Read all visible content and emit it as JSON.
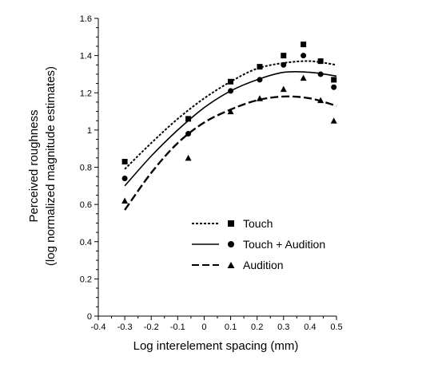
{
  "chart_data": {
    "type": "scatter",
    "title": "",
    "xlabel": "Log interelement spacing (mm)",
    "ylabel_line1": "Perceived roughness",
    "ylabel_line2": "(log normalized magnitude estimates)",
    "xlim": [
      -0.4,
      0.5
    ],
    "ylim": [
      0,
      1.6
    ],
    "x_ticks": [
      -0.4,
      -0.3,
      -0.2,
      -0.1,
      0,
      0.1,
      0.2,
      0.3,
      0.4,
      0.5
    ],
    "x_tick_labels": [
      "-0.4",
      "-0.3",
      "-0.2",
      "-0.1",
      "0",
      "0.1",
      "0.2",
      "0.3",
      "0.4",
      "0.5"
    ],
    "y_ticks": [
      0,
      0.2,
      0.4,
      0.6,
      0.8,
      1,
      1.2,
      1.4,
      1.6
    ],
    "y_tick_labels": [
      "0",
      "0.2",
      "0.4",
      "0.6",
      "0.8",
      "1",
      "1.2",
      "1.4",
      "1.6"
    ],
    "grid": false,
    "legend_position": "center-right",
    "series": [
      {
        "name": "Touch",
        "marker": "square",
        "line_style": "dotted",
        "x": [
          -0.3,
          -0.06,
          0.1,
          0.21,
          0.3,
          0.375,
          0.44,
          0.49
        ],
        "y": [
          0.83,
          1.06,
          1.26,
          1.34,
          1.4,
          1.46,
          1.37,
          1.27
        ],
        "fit": [
          [
            -0.3,
            0.79
          ],
          [
            -0.2,
            0.93
          ],
          [
            -0.1,
            1.06
          ],
          [
            0.0,
            1.17
          ],
          [
            0.1,
            1.26
          ],
          [
            0.2,
            1.33
          ],
          [
            0.3,
            1.36
          ],
          [
            0.4,
            1.37
          ],
          [
            0.5,
            1.35
          ]
        ]
      },
      {
        "name": "Touch + Audition",
        "marker": "circle",
        "line_style": "solid",
        "x": [
          -0.3,
          -0.06,
          0.1,
          0.21,
          0.3,
          0.375,
          0.44,
          0.49
        ],
        "y": [
          0.74,
          0.98,
          1.21,
          1.27,
          1.35,
          1.4,
          1.3,
          1.23
        ],
        "fit": [
          [
            -0.3,
            0.7
          ],
          [
            -0.2,
            0.86
          ],
          [
            -0.1,
            1.0
          ],
          [
            0.0,
            1.12
          ],
          [
            0.1,
            1.21
          ],
          [
            0.2,
            1.27
          ],
          [
            0.3,
            1.31
          ],
          [
            0.4,
            1.31
          ],
          [
            0.5,
            1.29
          ]
        ]
      },
      {
        "name": "Audition",
        "marker": "triangle",
        "line_style": "dashed",
        "x": [
          -0.3,
          -0.06,
          0.1,
          0.21,
          0.3,
          0.375,
          0.44,
          0.49
        ],
        "y": [
          0.62,
          0.85,
          1.1,
          1.17,
          1.22,
          1.28,
          1.16,
          1.05
        ],
        "fit": [
          [
            -0.3,
            0.57
          ],
          [
            -0.2,
            0.77
          ],
          [
            -0.1,
            0.93
          ],
          [
            0.0,
            1.04
          ],
          [
            0.1,
            1.11
          ],
          [
            0.2,
            1.16
          ],
          [
            0.3,
            1.18
          ],
          [
            0.4,
            1.17
          ],
          [
            0.5,
            1.13
          ]
        ]
      }
    ]
  }
}
